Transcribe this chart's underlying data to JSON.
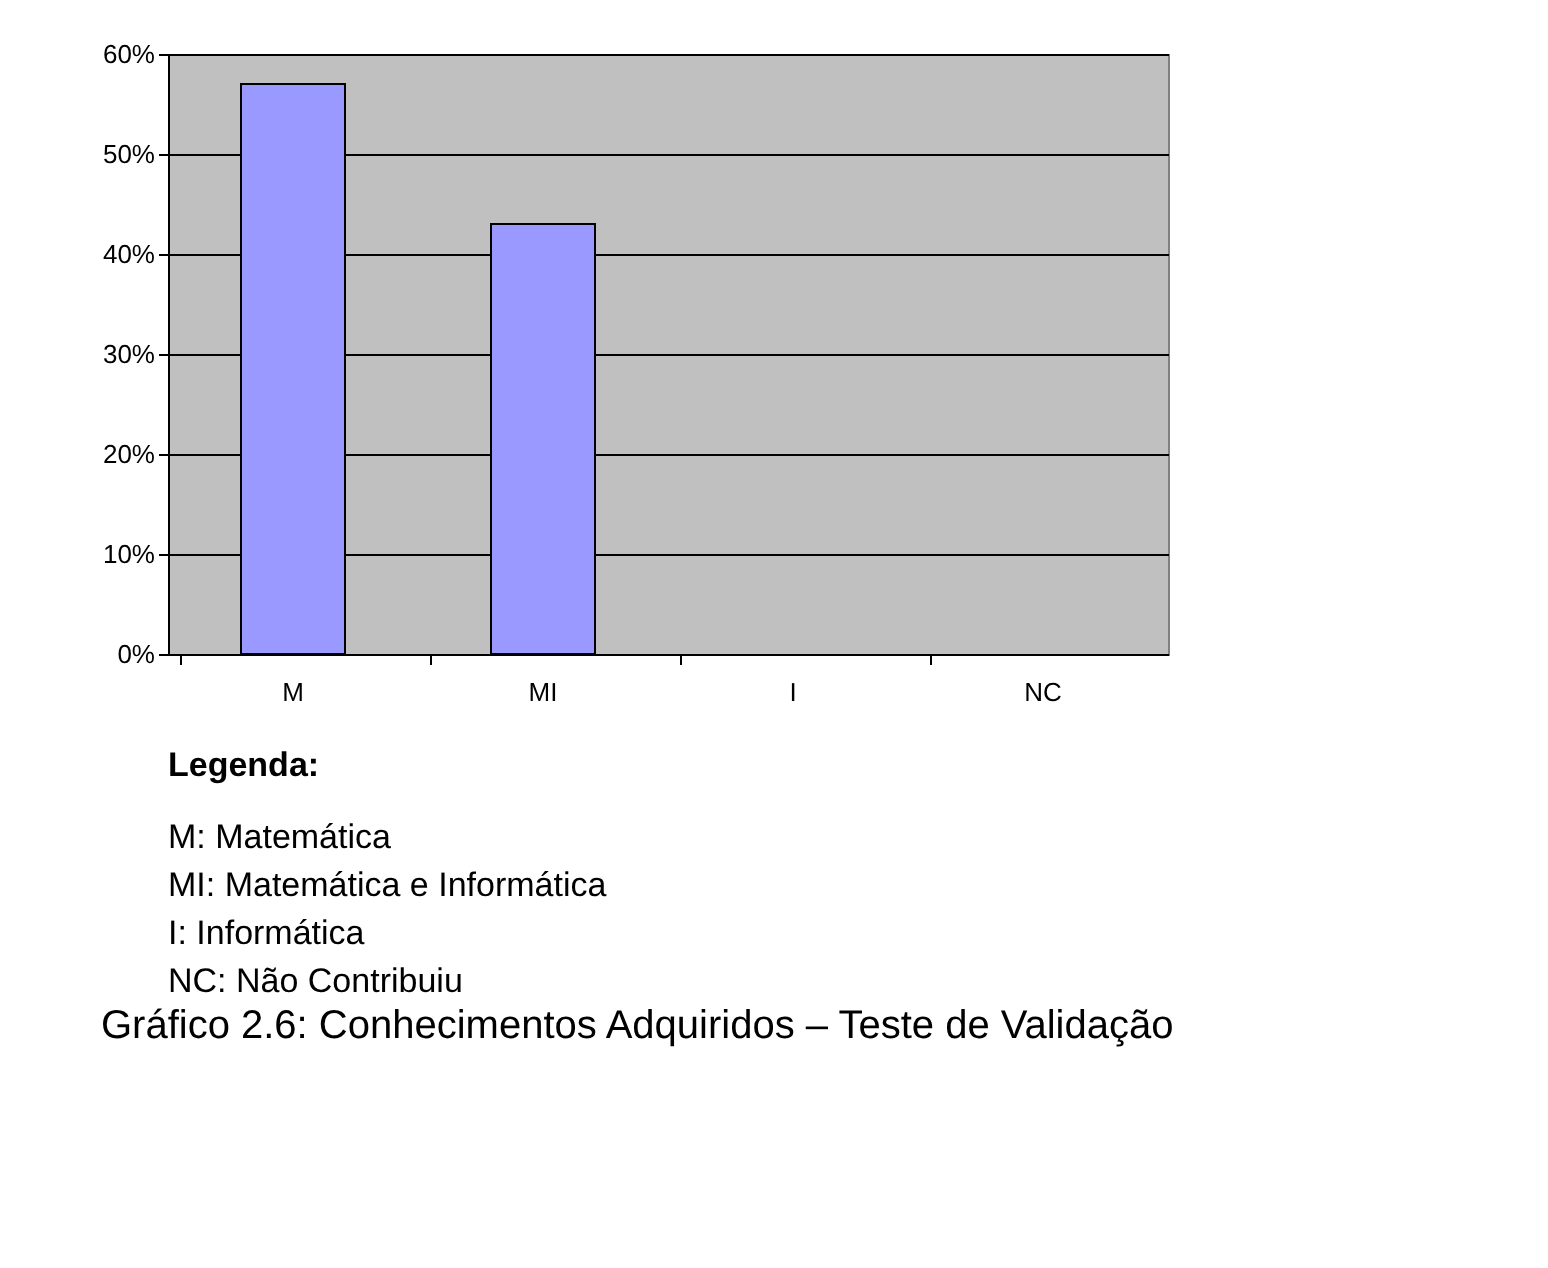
{
  "chart_data": {
    "type": "bar",
    "title": "Gráfico 2.6: Conhecimentos Adquiridos – Teste de Validação",
    "categories": [
      "M",
      "MI",
      "I",
      "NC"
    ],
    "values": [
      0.57,
      0.43,
      0,
      0
    ],
    "color": "#9999ff",
    "ylim": [
      0,
      0.6
    ],
    "yticks": [
      {
        "value": 0,
        "label": "0%"
      },
      {
        "value": 0.1,
        "label": "10%"
      },
      {
        "value": 0.2,
        "label": "20%"
      },
      {
        "value": 0.3,
        "label": "30%"
      },
      {
        "value": 0.4,
        "label": "40%"
      },
      {
        "value": 0.5,
        "label": "50%"
      },
      {
        "value": 0.6,
        "label": "60%"
      }
    ],
    "grid": "y",
    "annotations": [
      "Legenda:",
      "M: Matemática",
      "MI: Matemática e Informática",
      "I: Informática",
      "NC: Não Contribuiu"
    ]
  }
}
